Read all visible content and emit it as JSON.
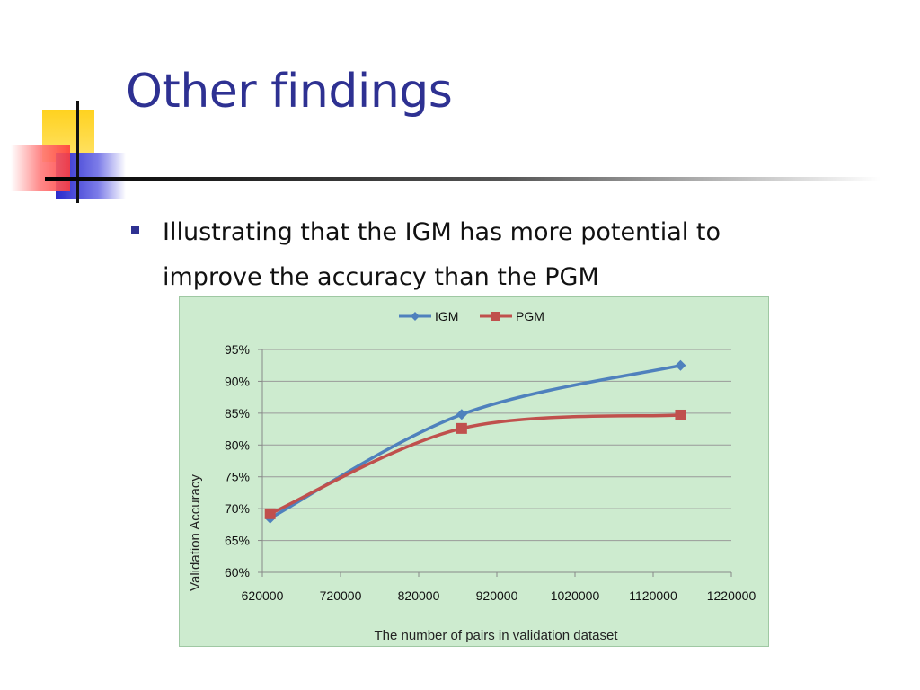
{
  "slide": {
    "title": "Other findings",
    "bullet": "Illustrating that the IGM has more potential to improve the accuracy than the PGM"
  },
  "colors": {
    "title": "#2e3192",
    "chart_background": "#cdebcf",
    "igm": "#4f81bd",
    "pgm": "#c0504d"
  },
  "chart_data": {
    "type": "line",
    "title": "",
    "xlabel": "The number of pairs in validation dataset",
    "ylabel": "Validation Accuracy",
    "xlim": [
      620000,
      1220000
    ],
    "ylim": [
      0.6,
      0.95
    ],
    "x_ticks": [
      620000,
      720000,
      820000,
      920000,
      1020000,
      1120000,
      1220000
    ],
    "x_tick_labels": [
      "620000",
      "720000",
      "820000",
      "920000",
      "1020000",
      "1120000",
      "1220000"
    ],
    "y_ticks": [
      0.6,
      0.65,
      0.7,
      0.75,
      0.8,
      0.85,
      0.9,
      0.95
    ],
    "y_tick_labels": [
      "60%",
      "65%",
      "70%",
      "75%",
      "80%",
      "85%",
      "90%",
      "95%"
    ],
    "grid": "horizontal",
    "legend_position": "top",
    "smooth": true,
    "series": [
      {
        "name": "IGM",
        "marker": "diamond",
        "color": "#4f81bd",
        "x": [
          630000,
          875000,
          1155000
        ],
        "values": [
          0.685,
          0.848,
          0.925
        ]
      },
      {
        "name": "PGM",
        "marker": "square",
        "color": "#c0504d",
        "x": [
          630000,
          875000,
          1155000
        ],
        "values": [
          0.692,
          0.826,
          0.847
        ]
      }
    ]
  }
}
